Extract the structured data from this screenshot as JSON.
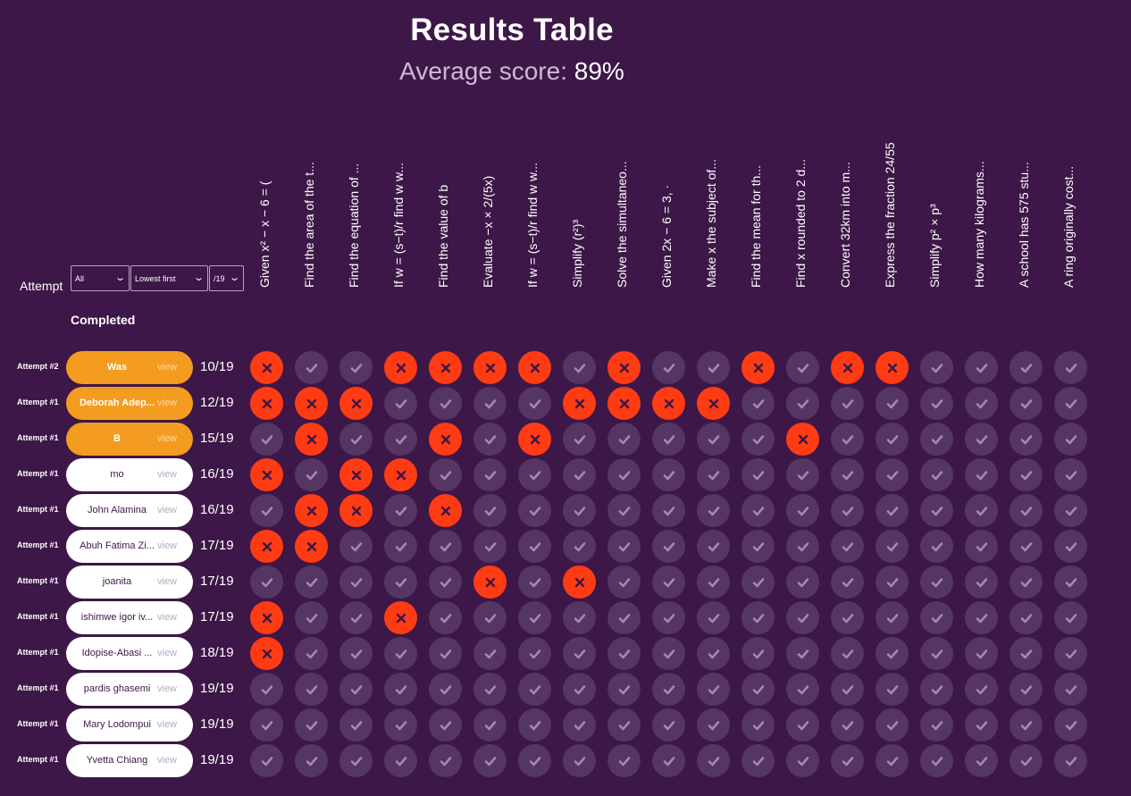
{
  "header": {
    "title": "Results Table",
    "average_label": "Average score:",
    "average_value": "89%"
  },
  "filters": {
    "attempt_label": "Attempt",
    "attempt_filter": "All",
    "order": "Lowest first",
    "max_score": "/19",
    "completed_label": "Completed"
  },
  "questions": [
    "Given x² − x − 6 = (",
    "Find the area of the t...",
    "Find the equation of ...",
    "If w = (s−t)/r find w w...",
    "Find the value of b",
    "Evaluate −x × 2/(5x)",
    "If w = (s−t)/r find w w...",
    "Simplify (r²)³",
    "Solve the simultaneo...",
    "Given 2x − 6 = 3, ·",
    "Make x the subject of...",
    "Find the mean for th...",
    "Find x rounded to 2 d...",
    "Convert 32km into m...",
    "Express the fraction 24/55",
    "Simplify p² × p³",
    "How many kilograms...",
    "A school has 575 stu...",
    "A ring originally cost..."
  ],
  "rows": [
    {
      "attempt": "Attempt #2",
      "name": "Was",
      "view": "view",
      "highlight": true,
      "score": "10/19",
      "results": [
        0,
        1,
        1,
        0,
        0,
        0,
        0,
        1,
        0,
        1,
        1,
        0,
        1,
        0,
        0,
        1,
        1,
        1,
        1
      ]
    },
    {
      "attempt": "Attempt #1",
      "name": "Deborah Adep...",
      "view": "view",
      "highlight": true,
      "score": "12/19",
      "results": [
        0,
        0,
        0,
        1,
        1,
        1,
        1,
        0,
        0,
        0,
        0,
        1,
        1,
        1,
        1,
        1,
        1,
        1,
        1
      ]
    },
    {
      "attempt": "Attempt #1",
      "name": "B",
      "view": "view",
      "highlight": true,
      "score": "15/19",
      "results": [
        1,
        0,
        1,
        1,
        0,
        1,
        0,
        1,
        1,
        1,
        1,
        1,
        0,
        1,
        1,
        1,
        1,
        1,
        1
      ]
    },
    {
      "attempt": "Attempt #1",
      "name": "mo",
      "view": "view",
      "highlight": false,
      "score": "16/19",
      "results": [
        0,
        1,
        0,
        0,
        1,
        1,
        1,
        1,
        1,
        1,
        1,
        1,
        1,
        1,
        1,
        1,
        1,
        1,
        1
      ]
    },
    {
      "attempt": "Attempt #1",
      "name": "John Alamina",
      "view": "view",
      "highlight": false,
      "score": "16/19",
      "results": [
        1,
        0,
        0,
        1,
        0,
        1,
        1,
        1,
        1,
        1,
        1,
        1,
        1,
        1,
        1,
        1,
        1,
        1,
        1
      ]
    },
    {
      "attempt": "Attempt #1",
      "name": "Abuh Fatima Zi...",
      "view": "view",
      "highlight": false,
      "score": "17/19",
      "results": [
        0,
        0,
        1,
        1,
        1,
        1,
        1,
        1,
        1,
        1,
        1,
        1,
        1,
        1,
        1,
        1,
        1,
        1,
        1
      ]
    },
    {
      "attempt": "Attempt #1",
      "name": "joanita",
      "view": "view",
      "highlight": false,
      "score": "17/19",
      "results": [
        1,
        1,
        1,
        1,
        1,
        0,
        1,
        0,
        1,
        1,
        1,
        1,
        1,
        1,
        1,
        1,
        1,
        1,
        1
      ]
    },
    {
      "attempt": "Attempt #1",
      "name": "ishimwe igor iv...",
      "view": "view",
      "highlight": false,
      "score": "17/19",
      "results": [
        0,
        1,
        1,
        0,
        1,
        1,
        1,
        1,
        1,
        1,
        1,
        1,
        1,
        1,
        1,
        1,
        1,
        1,
        1
      ]
    },
    {
      "attempt": "Attempt #1",
      "name": "Idopise-Abasi ...",
      "view": "view",
      "highlight": false,
      "score": "18/19",
      "results": [
        0,
        1,
        1,
        1,
        1,
        1,
        1,
        1,
        1,
        1,
        1,
        1,
        1,
        1,
        1,
        1,
        1,
        1,
        1
      ]
    },
    {
      "attempt": "Attempt #1",
      "name": "pardis ghasemi",
      "view": "view",
      "highlight": false,
      "score": "19/19",
      "results": [
        1,
        1,
        1,
        1,
        1,
        1,
        1,
        1,
        1,
        1,
        1,
        1,
        1,
        1,
        1,
        1,
        1,
        1,
        1
      ]
    },
    {
      "attempt": "Attempt #1",
      "name": "Mary Lodompui",
      "view": "view",
      "highlight": false,
      "score": "19/19",
      "results": [
        1,
        1,
        1,
        1,
        1,
        1,
        1,
        1,
        1,
        1,
        1,
        1,
        1,
        1,
        1,
        1,
        1,
        1,
        1
      ]
    },
    {
      "attempt": "Attempt #1",
      "name": "Yvetta Chiang",
      "view": "view",
      "highlight": false,
      "score": "19/19",
      "results": [
        1,
        1,
        1,
        1,
        1,
        1,
        1,
        1,
        1,
        1,
        1,
        1,
        1,
        1,
        1,
        1,
        1,
        1,
        1
      ]
    }
  ],
  "icons": {
    "correct": "check-icon",
    "incorrect": "cross-icon"
  },
  "colors": {
    "background": "#3d1747",
    "correct_cell": "#553562",
    "incorrect_cell": "#ff3b14",
    "highlight_pill": "#f39c1f"
  }
}
